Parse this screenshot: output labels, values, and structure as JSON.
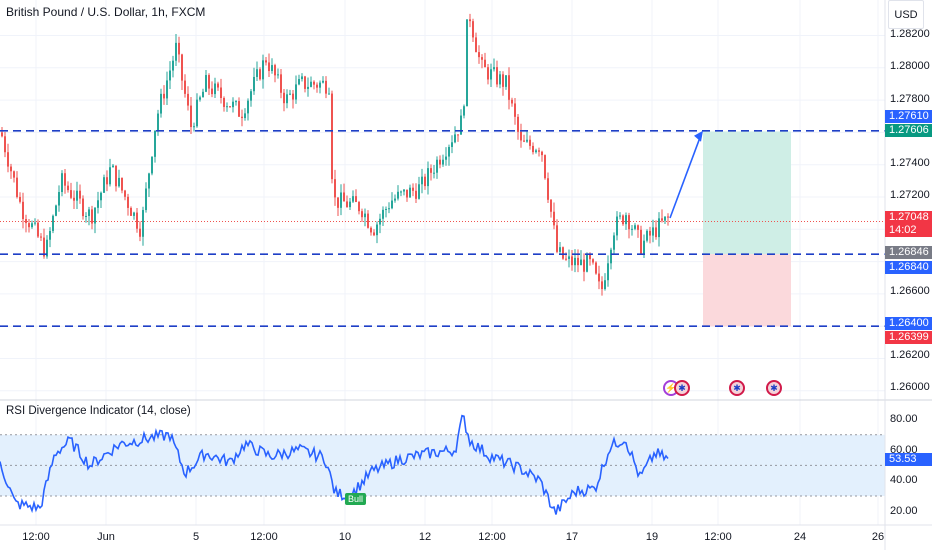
{
  "header": {
    "symbol_title": "British Pound / U.S. Dollar, 1h, FXCM",
    "currency": "USD"
  },
  "y_axis": {
    "ticks": [
      "1.28200",
      "1.28000",
      "1.27800",
      "1.27400",
      "1.27200",
      "1.26600",
      "1.26200",
      "1.26000"
    ],
    "tags": {
      "target_high": "1.27610",
      "target_low": "1.27606",
      "price": "1.27048",
      "countdown": "14:02",
      "entry_high": "1.26846",
      "entry_low": "1.26840",
      "stop_high": "1.26400",
      "stop_low": "1.26399"
    }
  },
  "rsi_axis": {
    "ticks": [
      "80.00",
      "60.00",
      "40.00",
      "20.00"
    ],
    "value": "53.53"
  },
  "indicator": {
    "title": "RSI Divergence Indicator (14, close)",
    "bull_label": "Bull"
  },
  "x_axis": {
    "labels": [
      "12:00",
      "Jun",
      "5",
      "12:00",
      "10",
      "12",
      "12:00",
      "17",
      "19",
      "12:00",
      "24",
      "26"
    ]
  },
  "colors": {
    "up": "#26a69a",
    "down": "#ef5350",
    "level_line": "#1e3fc6",
    "projection_arrow": "#2962ff",
    "profit_zone": "#cfeee6",
    "loss_zone": "#fbd9dc",
    "rsi_line": "#2962ff",
    "rsi_band": "#e3f0fd",
    "price_tag_red": "#f23645",
    "price_tag_green": "#089981",
    "entry_tag_gray": "#787b86",
    "level_tag_blue": "#2962ff"
  },
  "chart_data": {
    "type": "candlestick",
    "title": "British Pound / U.S. Dollar, 1h, FXCM",
    "currency": "USD",
    "price_range": [
      1.259,
      1.2836
    ],
    "last_price": 1.27048,
    "horizontal_levels": [
      1.2761,
      1.26846,
      1.264
    ],
    "position": {
      "entry": 1.26846,
      "target": 1.27606,
      "stop": 1.26399
    },
    "rsi": {
      "length": 14,
      "source": "close",
      "last": 53.53,
      "band": [
        30,
        70
      ],
      "range": [
        15,
        87
      ]
    },
    "x_tick_labels": [
      "12:00",
      "Jun",
      "5",
      "12:00",
      "10",
      "12",
      "12:00",
      "17",
      "19",
      "12:00",
      "24",
      "26"
    ]
  }
}
